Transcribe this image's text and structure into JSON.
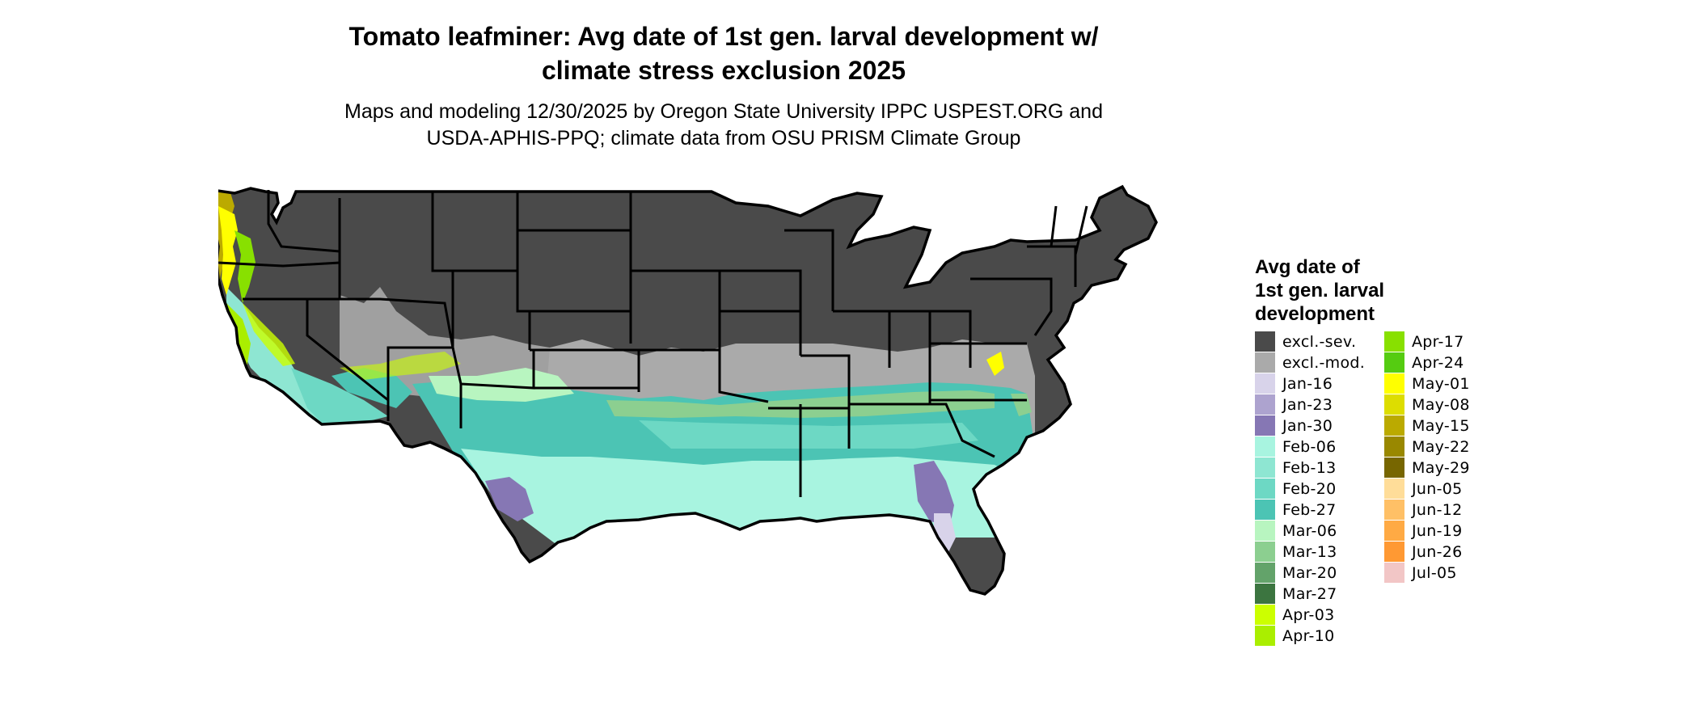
{
  "title_line1": "Tomato leafminer: Avg date of 1st gen. larval development w/",
  "title_line2": "climate stress exclusion 2025",
  "subtitle_line1": "Maps and modeling 12/30/2025 by Oregon State University IPPC USPEST.ORG and",
  "subtitle_line2": "USDA-APHIS-PPQ; climate data from OSU PRISM Climate Group",
  "legend": {
    "title_line1": "Avg date of",
    "title_line2": "1st gen. larval",
    "title_line3": "development",
    "items": [
      {
        "label": "excl.-sev.",
        "color": "#4a4a4a"
      },
      {
        "label": "excl.-mod.",
        "color": "#aaaaaa"
      },
      {
        "label": "Jan-16",
        "color": "#d8d3ea"
      },
      {
        "label": "Jan-23",
        "color": "#ada3cf"
      },
      {
        "label": "Jan-30",
        "color": "#8677b4"
      },
      {
        "label": "Feb-06",
        "color": "#a8f4e0"
      },
      {
        "label": "Feb-13",
        "color": "#8ee6d2"
      },
      {
        "label": "Feb-20",
        "color": "#6dd8c4"
      },
      {
        "label": "Feb-27",
        "color": "#4cc4b4"
      },
      {
        "label": "Mar-06",
        "color": "#b8f5c0"
      },
      {
        "label": "Mar-13",
        "color": "#8ccf90"
      },
      {
        "label": "Mar-20",
        "color": "#63a36a"
      },
      {
        "label": "Mar-27",
        "color": "#3c7540"
      },
      {
        "label": "Apr-03",
        "color": "#ccff00"
      },
      {
        "label": "Apr-10",
        "color": "#aaee00"
      },
      {
        "label": "Apr-17",
        "color": "#88e000"
      },
      {
        "label": "Apr-24",
        "color": "#55cc11"
      },
      {
        "label": "May-01",
        "color": "#ffff00"
      },
      {
        "label": "May-08",
        "color": "#dddd00"
      },
      {
        "label": "May-15",
        "color": "#bbaa00"
      },
      {
        "label": "May-22",
        "color": "#998800"
      },
      {
        "label": "May-29",
        "color": "#776600"
      },
      {
        "label": "Jun-05",
        "color": "#ffdd99"
      },
      {
        "label": "Jun-12",
        "color": "#ffc066"
      },
      {
        "label": "Jun-19",
        "color": "#ffaa44"
      },
      {
        "label": "Jun-26",
        "color": "#ff9933"
      },
      {
        "label": "Jul-05",
        "color": "#f2c6c6"
      }
    ]
  }
}
